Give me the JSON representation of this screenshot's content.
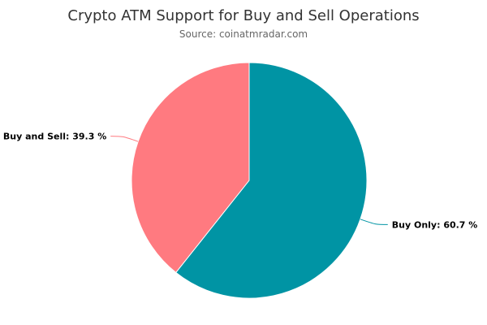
{
  "chart_data": {
    "type": "pie",
    "title": "Crypto ATM Support for Buy and Sell Operations",
    "subtitle": "Source: coinatmradar.com",
    "slices": [
      {
        "name": "Buy Only",
        "value": 60.7,
        "label": "Buy Only: 60.7 %",
        "color": "#0094a4"
      },
      {
        "name": "Buy and Sell",
        "value": 39.3,
        "label": "Buy and Sell: 39.3 %",
        "color": "#ff7a80"
      }
    ]
  }
}
